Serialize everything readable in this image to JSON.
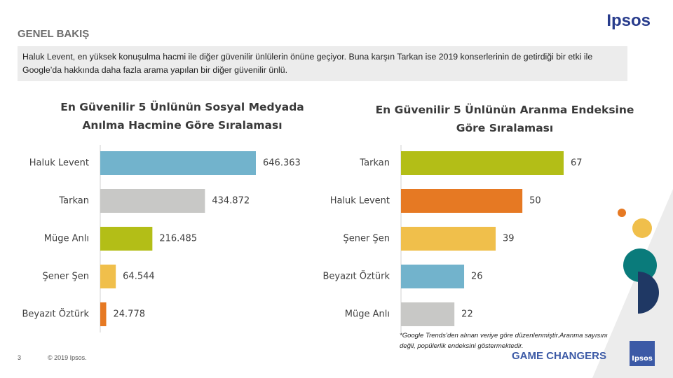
{
  "header": {
    "section": "GENEL BAKIŞ",
    "logo": "Ipsos",
    "summary": "Haluk Levent, en yüksek konuşulma  hacmi ile diğer güvenilir ünlülerin önüne geçiyor. Buna karşın Tarkan ise 2019 konserlerinin de getirdiği bir etki ile Google’da hakkında daha fazla arama yapılan bir diğer güvenilir ünlü."
  },
  "chart_data": [
    {
      "type": "bar",
      "title": "En Güvenilir 5 Ünlünün Sosyal Medyada Anılma Hacmine Göre Sıralaması",
      "categories": [
        "Haluk Levent",
        "Tarkan",
        "Müge Anlı",
        "Şener Şen",
        "Beyazıt Öztürk"
      ],
      "values": [
        646363,
        434872,
        216485,
        64544,
        24778
      ],
      "value_labels": [
        "646.363",
        "434.872",
        "216.485",
        "64.544",
        "24.778"
      ],
      "colors": [
        "#72b3cc",
        "#c8c8c6",
        "#b3be17",
        "#f0bf4b",
        "#e67923"
      ]
    },
    {
      "type": "bar",
      "title": "En Güvenilir 5 Ünlünün Aranma Endeksine Göre Sıralaması",
      "categories": [
        "Tarkan",
        "Haluk Levent",
        "Şener Şen",
        "Beyazıt Öztürk",
        "Müge Anlı"
      ],
      "values": [
        67,
        50,
        39,
        26,
        22
      ],
      "colors": [
        "#b3be17",
        "#e67923",
        "#f0bf4b",
        "#72b3cc",
        "#c8c8c6"
      ],
      "footnote": "*Google Trends’den alınan veriye göre düzenlenmiştir.Aranma sayısını değil, popülerlik endeksini göstermektedir."
    }
  ],
  "footer": {
    "page": 3,
    "copyright": "© 2019 Ipsos.",
    "tagline": "GAME CHANGERS",
    "badge": "Ipsos"
  }
}
